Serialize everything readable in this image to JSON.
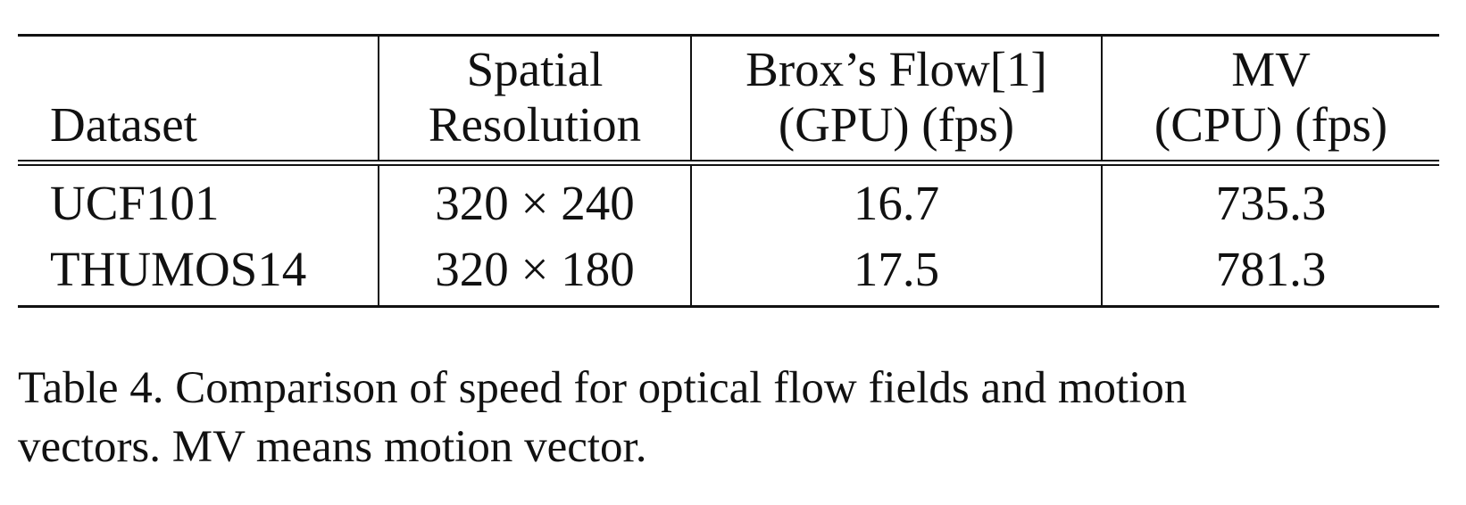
{
  "table": {
    "headers": [
      {
        "line1": "",
        "line2": "Dataset"
      },
      {
        "line1": "Spatial",
        "line2": "Resolution"
      },
      {
        "line1": "Brox’s Flow[1]",
        "line2": "(GPU) (fps)"
      },
      {
        "line1": "MV",
        "line2": "(CPU) (fps)"
      }
    ],
    "rows": [
      {
        "dataset": "UCF101",
        "resolution": "320 × 240",
        "brox_fps": "16.7",
        "mv_fps": "735.3"
      },
      {
        "dataset": "THUMOS14",
        "resolution": "320 × 180",
        "brox_fps": "17.5",
        "mv_fps": "781.3"
      }
    ]
  },
  "caption": {
    "line1": "Table 4. Comparison of speed for optical flow fields and motion",
    "line2": "vectors. MV means motion vector."
  }
}
